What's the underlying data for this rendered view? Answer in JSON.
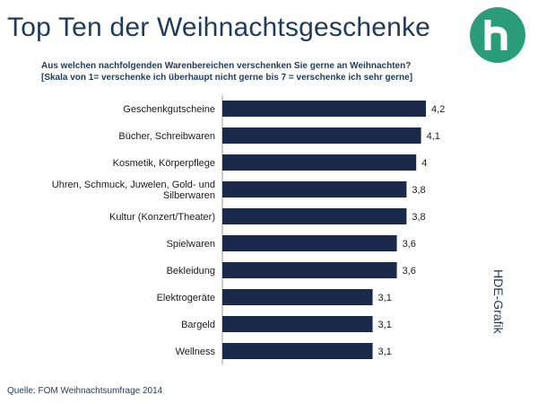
{
  "header": {
    "title": "Top Ten der Weihnachtsgeschenke",
    "subtitle_line1": "Aus welchen nachfolgenden Warenbereichen verschenken Sie gerne an Weihnachten?",
    "subtitle_line2": "[Skala von 1= verschenke ich überhaupt nicht gerne bis 7 = verschenke ich sehr gerne]"
  },
  "side_label": "HDE-Grafik",
  "footer": {
    "source": "Quelle: FOM Weihnachtsumfrage 2014"
  },
  "colors": {
    "bar": "#1b2a4a",
    "title": "#1f3b5c",
    "logo": "#2a9d78"
  },
  "logo": {
    "icon": "hde-logo-icon"
  },
  "chart_data": {
    "type": "bar",
    "orientation": "horizontal",
    "categories": [
      [
        "Geschenkgutscheine"
      ],
      [
        "Bücher, Schreibwaren"
      ],
      [
        "Kosmetik, Körperpflege"
      ],
      [
        "Uhren, Schmuck, Juwelen, Gold- und",
        "Silberwaren"
      ],
      [
        "Kultur (Konzert/Theater)"
      ],
      [
        "Spielwaren"
      ],
      [
        "Bekleidung"
      ],
      [
        "Elektrogeräte"
      ],
      [
        "Bargeld"
      ],
      [
        "Wellness"
      ]
    ],
    "values": [
      4.2,
      4.1,
      4.0,
      3.8,
      3.8,
      3.6,
      3.6,
      3.1,
      3.1,
      3.1
    ],
    "value_labels": [
      "4,2",
      "4,1",
      "4",
      "3,8",
      "3,8",
      "3,6",
      "3,6",
      "3,1",
      "3,1",
      "3,1"
    ],
    "xlim": [
      0,
      4.2
    ],
    "grid": false,
    "legend": "none"
  }
}
